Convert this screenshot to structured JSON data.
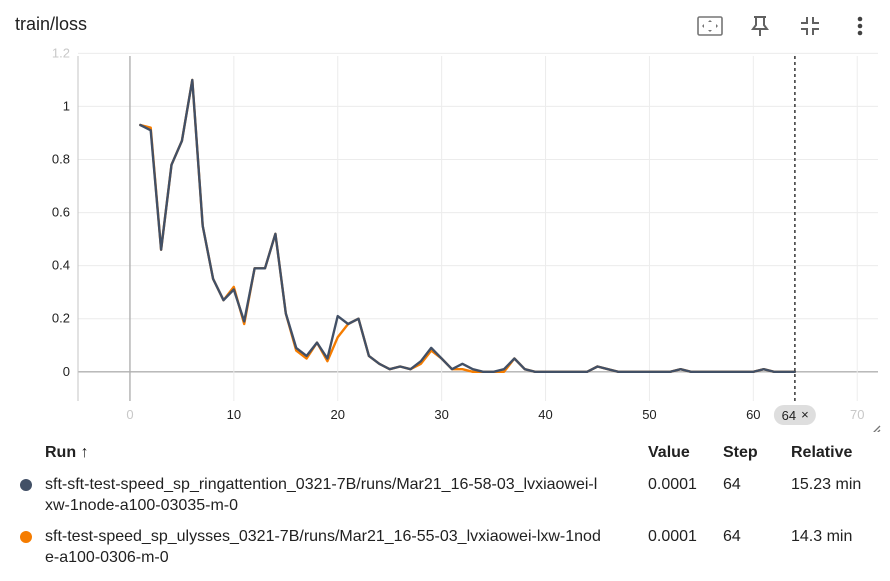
{
  "card": {
    "title": "train/loss"
  },
  "toolbar": {
    "icons": [
      "fit-domain-icon",
      "pin-icon",
      "collapse-icon",
      "more-vert-icon"
    ]
  },
  "chart_data": {
    "type": "line",
    "title": "",
    "xlabel": "",
    "ylabel": "",
    "xlim": [
      -5,
      72
    ],
    "ylim": [
      -0.11,
      1.19
    ],
    "x_ticks": [
      "0",
      "10",
      "20",
      "30",
      "40",
      "50",
      "60",
      "70"
    ],
    "y_ticks": [
      "0",
      "0.2",
      "0.4",
      "0.6",
      "0.8",
      "1",
      "1.2"
    ],
    "grid": true,
    "series": [
      {
        "name": "sft-sft-test-speed_sp_ringattention_0321-7B/runs/Mar21_16-58-03_lvxiaowei-lxw-1node-a100-03035-m-0",
        "color": "#425066",
        "x": [
          1,
          2,
          3,
          4,
          5,
          6,
          7,
          8,
          9,
          10,
          11,
          12,
          13,
          14,
          15,
          16,
          17,
          18,
          19,
          20,
          21,
          22,
          23,
          24,
          25,
          26,
          27,
          28,
          29,
          30,
          31,
          32,
          33,
          34,
          35,
          36,
          37,
          38,
          39,
          40,
          41,
          42,
          43,
          44,
          45,
          46,
          47,
          48,
          49,
          50,
          51,
          52,
          53,
          54,
          55,
          56,
          57,
          58,
          59,
          60,
          61,
          62,
          63,
          64
        ],
        "y": [
          0.93,
          0.91,
          0.46,
          0.78,
          0.87,
          1.1,
          0.55,
          0.35,
          0.27,
          0.31,
          0.19,
          0.39,
          0.39,
          0.52,
          0.22,
          0.09,
          0.06,
          0.11,
          0.05,
          0.21,
          0.18,
          0.2,
          0.06,
          0.03,
          0.01,
          0.02,
          0.01,
          0.04,
          0.09,
          0.05,
          0.01,
          0.03,
          0.01,
          0.0,
          0.0,
          0.01,
          0.05,
          0.01,
          0.0,
          0.0,
          0.0,
          0.0,
          0.0,
          0.0,
          0.02,
          0.01,
          0.0,
          0.0,
          0.0,
          0.0,
          0.0,
          0.0,
          0.01,
          0.0,
          0.0,
          0.0,
          0.0,
          0.0,
          0.0,
          0.0,
          0.01,
          0.0,
          0.0,
          0.0001
        ]
      },
      {
        "name": "sft-test-speed_sp_ulysses_0321-7B/runs/Mar21_16-55-03_lvxiaowei-lxw-1node-a100-0306-m-0",
        "color": "#f57c00",
        "x": [
          1,
          2,
          3,
          4,
          5,
          6,
          7,
          8,
          9,
          10,
          11,
          12,
          13,
          14,
          15,
          16,
          17,
          18,
          19,
          20,
          21,
          22,
          23,
          24,
          25,
          26,
          27,
          28,
          29,
          30,
          31,
          32,
          33,
          34,
          35,
          36,
          37,
          38,
          39,
          40,
          41,
          42,
          43,
          44,
          45,
          46,
          47,
          48,
          49,
          50,
          51,
          52,
          53,
          54,
          55,
          56,
          57,
          58,
          59,
          60,
          61,
          62,
          63,
          64
        ],
        "y": [
          0.93,
          0.92,
          0.46,
          0.78,
          0.87,
          1.1,
          0.55,
          0.35,
          0.27,
          0.32,
          0.18,
          0.39,
          0.39,
          0.52,
          0.22,
          0.08,
          0.05,
          0.11,
          0.04,
          0.13,
          0.18,
          0.2,
          0.06,
          0.03,
          0.01,
          0.02,
          0.01,
          0.03,
          0.08,
          0.05,
          0.01,
          0.01,
          0.0,
          0.0,
          0.0,
          0.0,
          0.05,
          0.01,
          0.0,
          0.0,
          0.0,
          0.0,
          0.0,
          0.0,
          0.02,
          0.01,
          0.0,
          0.0,
          0.0,
          0.0,
          0.0,
          0.0,
          0.01,
          0.0,
          0.0,
          0.0,
          0.0,
          0.0,
          0.0,
          0.0,
          0.01,
          0.0,
          0.0,
          0.0001
        ]
      }
    ],
    "cursor_step": "64",
    "cursor_close": "×"
  },
  "table": {
    "headers": {
      "run": "Run",
      "sort": "↑",
      "value": "Value",
      "step": "Step",
      "relative": "Relative"
    },
    "rows": [
      {
        "color": "#425066",
        "run": "sft-sft-test-speed_sp_ringattention_0321-7B/runs/Mar21_16-58-03_lvxiaowei-lxw-1node-a100-03035-m-0",
        "value": "0.0001",
        "step": "64",
        "relative": "15.23 min"
      },
      {
        "color": "#f57c00",
        "run": "sft-test-speed_sp_ulysses_0321-7B/runs/Mar21_16-55-03_lvxiaowei-lxw-1node-a100-0306-m-0",
        "value": "0.0001",
        "step": "64",
        "relative": "14.3 min"
      }
    ]
  }
}
